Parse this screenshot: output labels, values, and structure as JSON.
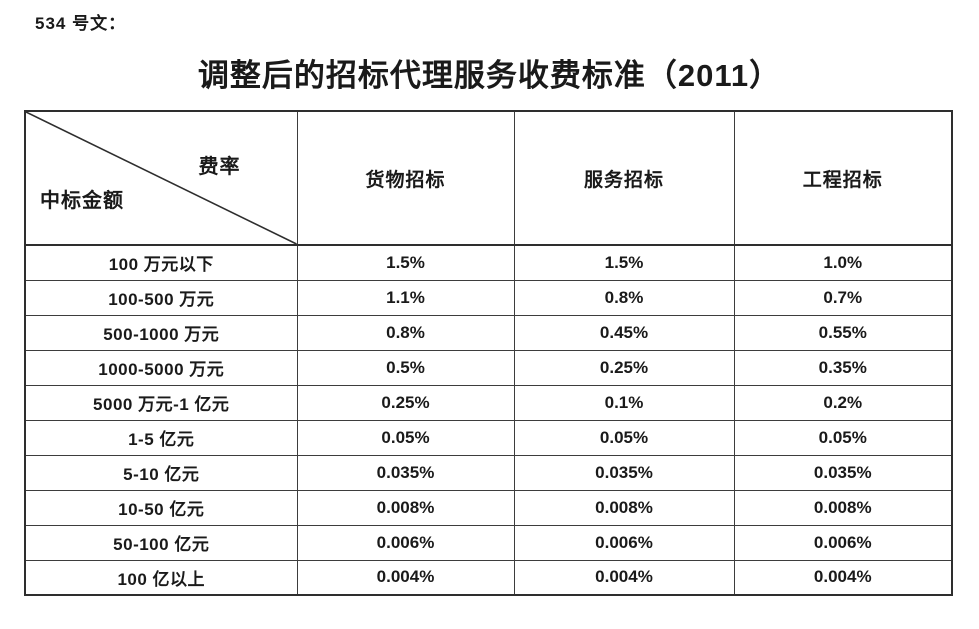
{
  "doc": {
    "ref_label": "534 号文：",
    "title": "调整后的招标代理服务收费标准（2011）"
  },
  "table": {
    "corner": {
      "top_right": "费率",
      "bottom_left": "中标金额"
    },
    "columns": [
      "货物招标",
      "服务招标",
      "工程招标"
    ],
    "rows": [
      {
        "label": "100 万元以下",
        "rates": [
          "1.5%",
          "1.5%",
          "1.0%"
        ]
      },
      {
        "label": "100-500 万元",
        "rates": [
          "1.1%",
          "0.8%",
          "0.7%"
        ]
      },
      {
        "label": "500-1000 万元",
        "rates": [
          "0.8%",
          "0.45%",
          "0.55%"
        ]
      },
      {
        "label": "1000-5000 万元",
        "rates": [
          "0.5%",
          "0.25%",
          "0.35%"
        ]
      },
      {
        "label": "5000 万元-1 亿元",
        "rates": [
          "0.25%",
          "0.1%",
          "0.2%"
        ]
      },
      {
        "label": "1-5 亿元",
        "rates": [
          "0.05%",
          "0.05%",
          "0.05%"
        ]
      },
      {
        "label": "5-10 亿元",
        "rates": [
          "0.035%",
          "0.035%",
          "0.035%"
        ]
      },
      {
        "label": "10-50 亿元",
        "rates": [
          "0.008%",
          "0.008%",
          "0.008%"
        ]
      },
      {
        "label": "50-100 亿元",
        "rates": [
          "0.006%",
          "0.006%",
          "0.006%"
        ]
      },
      {
        "label": "100 亿以上",
        "rates": [
          "0.004%",
          "0.004%",
          "0.004%"
        ]
      }
    ]
  },
  "colors": {
    "text": "#1a1a1a",
    "border": "#3d3d3d"
  }
}
